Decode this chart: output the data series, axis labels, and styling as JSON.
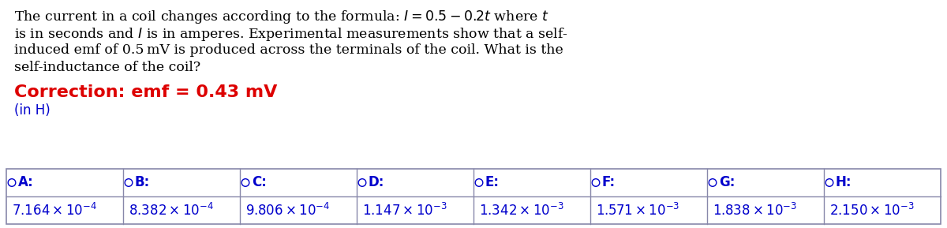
{
  "question_text_lines": [
    "The current in a coil changes according to the formula: $I = 0.5 - 0.2t$ where $t$",
    "is in seconds and $I$ is in amperes. Experimental measurements show that a self-",
    "induced emf of 0.5 mV is produced across the terminals of the coil. What is the",
    "self-inductance of the coil?"
  ],
  "correction_text": "Correction: emf = 0.43 mV",
  "unit_text": "(in H)",
  "correction_color": "#dd0000",
  "unit_color": "#0000cc",
  "options": [
    {
      "label": "A",
      "value_base": "7.164",
      "exp": "-4"
    },
    {
      "label": "B",
      "value_base": "8.382",
      "exp": "-4"
    },
    {
      "label": "C",
      "value_base": "9.806",
      "exp": "-4"
    },
    {
      "label": "D",
      "value_base": "1.147",
      "exp": "-3"
    },
    {
      "label": "E",
      "value_base": "1.342",
      "exp": "-3"
    },
    {
      "label": "F",
      "value_base": "1.571",
      "exp": "-3"
    },
    {
      "label": "G",
      "value_base": "1.838",
      "exp": "-3"
    },
    {
      "label": "H",
      "value_base": "2.150",
      "exp": "-3"
    }
  ],
  "option_color": "#0000cc",
  "bg_color": "#ffffff",
  "text_color": "#000000",
  "table_border_color": "#8888aa",
  "question_fontsize": 12.5,
  "correction_fontsize": 16,
  "unit_fontsize": 12,
  "option_label_fontsize": 12,
  "option_value_fontsize": 12,
  "fig_width": 12.0,
  "fig_height": 2.89,
  "dpi": 100
}
